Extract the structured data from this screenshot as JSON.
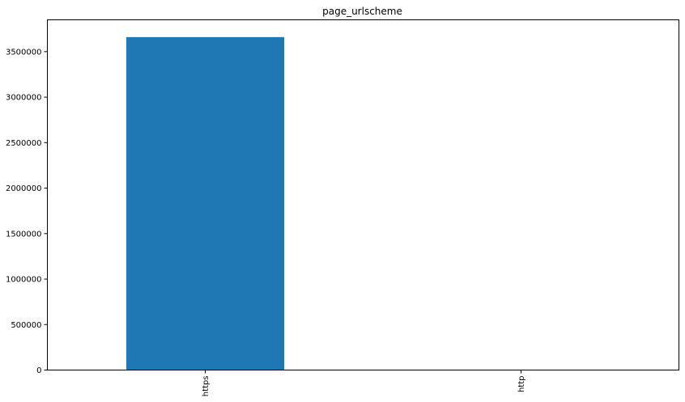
{
  "chart_data": {
    "type": "bar",
    "title": "page_urlscheme",
    "xlabel": "",
    "ylabel": "",
    "categories": [
      "https",
      "http"
    ],
    "values": [
      3660000,
      0
    ],
    "ylim": [
      0,
      3850000
    ],
    "yticks": [
      0,
      500000,
      1000000,
      1500000,
      2000000,
      2500000,
      3000000,
      3500000
    ],
    "ytick_labels": [
      "0",
      "500000",
      "1000000",
      "1500000",
      "2000000",
      "2500000",
      "3000000",
      "3500000"
    ],
    "bar_color": "#1f77b4",
    "grid": false,
    "legend": "none"
  }
}
